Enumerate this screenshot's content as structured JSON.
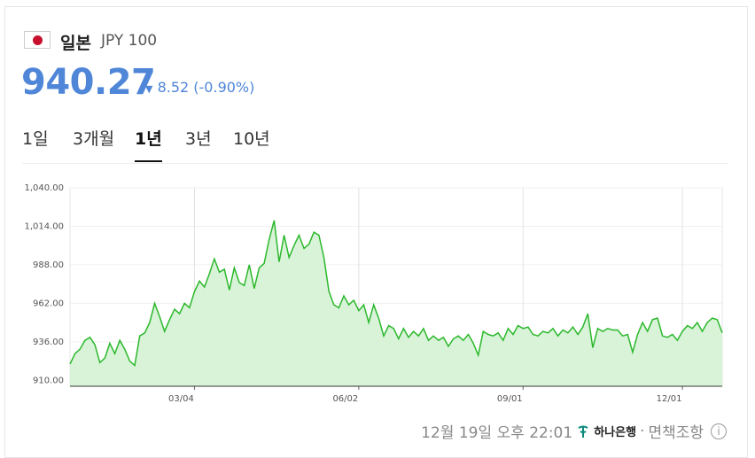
{
  "header": {
    "country": "일본",
    "currency": "JPY 100",
    "price": "940.27",
    "change": "8.52",
    "change_percent": "(-0.90%)"
  },
  "tabs": {
    "items": [
      "1일",
      "3개월",
      "1년",
      "3년",
      "10년"
    ],
    "selected": 2
  },
  "chart_data": {
    "type": "area",
    "values": [
      921,
      928,
      931,
      937,
      939,
      934,
      922,
      925,
      935,
      928,
      937,
      931,
      923,
      920,
      940,
      942,
      949,
      962,
      953,
      943,
      951,
      958,
      955,
      962,
      959,
      970,
      977,
      973,
      982,
      992,
      983,
      985,
      971,
      986,
      976,
      974,
      988,
      972,
      986,
      989,
      1005,
      1018,
      990,
      1008,
      993,
      1001,
      1008,
      999,
      1002,
      1010,
      1008,
      993,
      970,
      961,
      959,
      967,
      961,
      964,
      957,
      961,
      949,
      961,
      952,
      940,
      947,
      945,
      938,
      945,
      939,
      943,
      940,
      945,
      937,
      940,
      937,
      939,
      933,
      938,
      940,
      937,
      941,
      935,
      927,
      943,
      941,
      940,
      942,
      937,
      945,
      941,
      947,
      945,
      946,
      941,
      940,
      943,
      942,
      945,
      940,
      944,
      942,
      946,
      941,
      946,
      955,
      932,
      945,
      943,
      945,
      944,
      944,
      940,
      941,
      929,
      941,
      949,
      943,
      951,
      952,
      940,
      939,
      941,
      937,
      943,
      947,
      945,
      949,
      943,
      949,
      952,
      951,
      942
    ],
    "color": "#2cb82c",
    "fill": "#d8f3d8",
    "xlim": [
      0,
      131
    ],
    "xticks": [
      {
        "value": 25,
        "label": "03/04"
      },
      {
        "value": 58,
        "label": "06/02"
      },
      {
        "value": 91,
        "label": "09/01"
      },
      {
        "value": 123,
        "label": "12/01"
      }
    ],
    "ylim": [
      906,
      1040
    ],
    "yticks": [
      {
        "value": 910,
        "label": "910.00"
      },
      {
        "value": 936,
        "label": "936.00"
      },
      {
        "value": 962,
        "label": "962.00"
      },
      {
        "value": 988,
        "label": "988.00"
      },
      {
        "value": 1014,
        "label": "1,014.00"
      },
      {
        "value": 1040,
        "label": "1,040.00"
      }
    ],
    "grid": true
  },
  "footer": {
    "timestamp": "12월 19일 오후 22:01",
    "bank": "하나은행",
    "separator": "·",
    "disclaimer": "면책조항"
  }
}
